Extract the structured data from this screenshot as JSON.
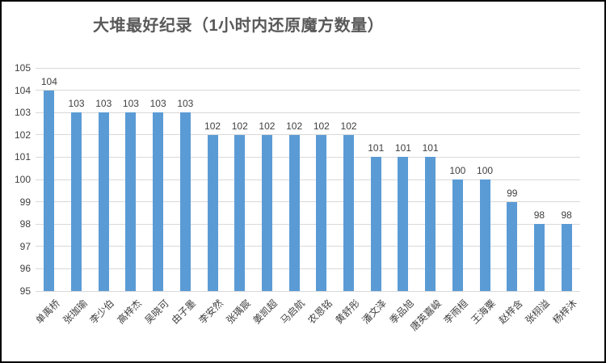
{
  "chart_data": {
    "type": "bar",
    "title": "大堆最好纪录（1小时内还原魔方数量）",
    "categories": [
      "单禹桥",
      "张珈瑜",
      "李少伯",
      "高梓杰",
      "吴晓可",
      "由子墨",
      "李安然",
      "张瑀宸",
      "姜凯超",
      "马启航",
      "农恩铭",
      "黄舒彤",
      "潘文泽",
      "季品旭",
      "唐英嘉峻",
      "李雨桓",
      "王海粟",
      "赵梓含",
      "张栩溢",
      "杨梓沐"
    ],
    "values": [
      104,
      103,
      103,
      103,
      103,
      103,
      102,
      102,
      102,
      102,
      102,
      102,
      101,
      101,
      101,
      100,
      100,
      99,
      98,
      98
    ],
    "xlabel": "",
    "ylabel": "",
    "ylim": [
      95,
      105
    ],
    "yticks": [
      95,
      96,
      97,
      98,
      99,
      100,
      101,
      102,
      103,
      104,
      105
    ],
    "grid": true,
    "legend": false,
    "data_labels_visible": true,
    "colors": {
      "bar": "#5B9BD5",
      "gridline": "#D9D9D9",
      "tick_label": "#404040",
      "data_label": "#404040",
      "title": "#595959",
      "background": "#FFFFFF",
      "border": "#000000"
    }
  }
}
